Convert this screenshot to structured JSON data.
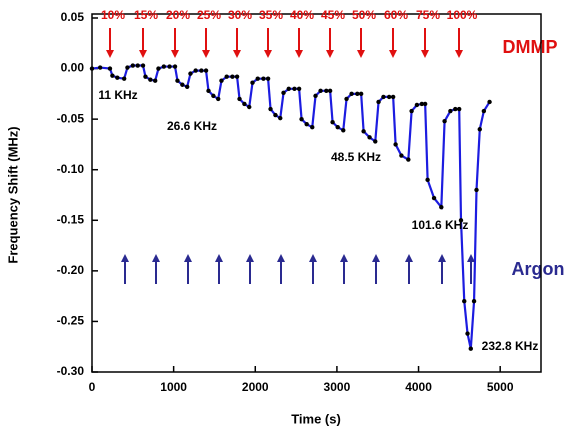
{
  "chart_data": {
    "type": "line",
    "x_label": "Time (s)",
    "y_label": "Frequency Shift (MHz)",
    "xlim": [
      0,
      5500
    ],
    "xticks": [
      0,
      1000,
      2000,
      3000,
      4000,
      5000
    ],
    "ylim": [
      -0.3,
      0.05
    ],
    "yticks": [
      0.05,
      {
        "value": 0,
        "label": "0.00"
      },
      -0.05,
      {
        "value": -0.1,
        "label": "-0.10"
      },
      -0.15,
      {
        "value": -0.2,
        "label": "-0.20"
      },
      -0.25,
      {
        "value": -0.3,
        "label": "-0.30"
      }
    ],
    "color": "#1c1ce0",
    "marker_color": "#000000",
    "x": [
      0,
      100,
      220,
      250,
      310,
      394,
      434,
      500,
      560,
      625,
      655,
      715,
      774,
      814,
      880,
      950,
      1017,
      1047,
      1107,
      1166,
      1206,
      1270,
      1340,
      1397,
      1427,
      1487,
      1546,
      1586,
      1650,
      1720,
      1777,
      1807,
      1867,
      1926,
      1966,
      2030,
      2100,
      2157,
      2187,
      2247,
      2306,
      2346,
      2410,
      2480,
      2537,
      2567,
      2630,
      2698,
      2738,
      2800,
      2870,
      2917,
      2947,
      3010,
      3078,
      3118,
      3180,
      3250,
      3297,
      3327,
      3400,
      3470,
      3510,
      3570,
      3640,
      3689,
      3719,
      3790,
      3875,
      3915,
      3980,
      4040,
      4081,
      4111,
      4190,
      4279,
      4319,
      4390,
      4450,
      4498,
      4520,
      4560,
      4600,
      4640,
      4680,
      4710,
      4750,
      4800,
      4870
    ],
    "values": [
      0,
      0.001,
      0,
      -0.007,
      -0.009,
      -0.01,
      0.001,
      0.003,
      0.003,
      0.003,
      -0.008,
      -0.011,
      -0.012,
      0,
      0.002,
      0.002,
      0.002,
      -0.012,
      -0.016,
      -0.018,
      -0.005,
      -0.002,
      -0.002,
      -0.002,
      -0.022,
      -0.027,
      -0.03,
      -0.012,
      -0.008,
      -0.008,
      -0.008,
      -0.03,
      -0.035,
      -0.038,
      -0.014,
      -0.01,
      -0.01,
      -0.01,
      -0.04,
      -0.046,
      -0.049,
      -0.024,
      -0.02,
      -0.02,
      -0.02,
      -0.05,
      -0.055,
      -0.058,
      -0.027,
      -0.022,
      -0.022,
      -0.022,
      -0.053,
      -0.058,
      -0.061,
      -0.03,
      -0.025,
      -0.025,
      -0.025,
      -0.062,
      -0.068,
      -0.072,
      -0.033,
      -0.028,
      -0.028,
      -0.028,
      -0.075,
      -0.086,
      -0.09,
      -0.042,
      -0.036,
      -0.035,
      -0.035,
      -0.11,
      -0.128,
      -0.137,
      -0.052,
      -0.042,
      -0.04,
      -0.04,
      -0.15,
      -0.23,
      -0.262,
      -0.277,
      -0.23,
      -0.12,
      -0.06,
      -0.042,
      -0.033
    ],
    "concentrations": [
      "10%",
      "15%",
      "20%",
      "25%",
      "30%",
      "35%",
      "40%",
      "45%",
      "50%",
      "60%",
      "75%",
      "100%"
    ],
    "dmmp_label": "DMMP",
    "argon_label": "Argon",
    "frequency_labels": [
      "11 KHz",
      "26.6 KHz",
      "48.5 KHz",
      "101.6 KHz",
      "232.8 KHz"
    ]
  }
}
